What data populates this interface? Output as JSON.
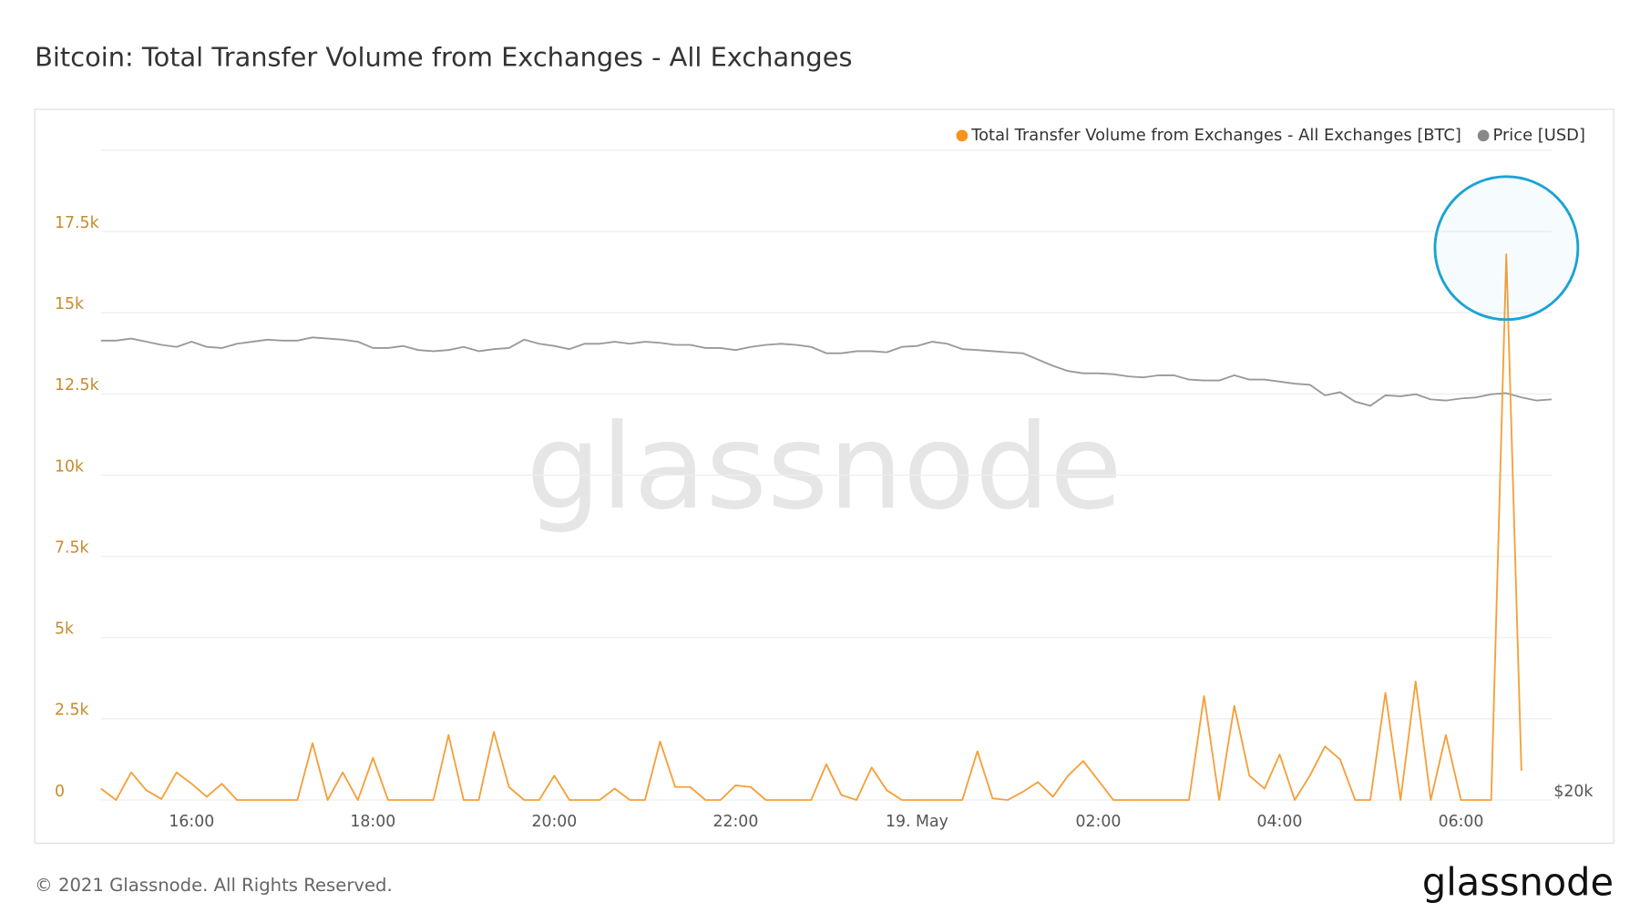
{
  "chart_data": {
    "type": "line",
    "title": "Bitcoin: Total Transfer Volume from Exchanges - All Exchanges",
    "watermark": "glassnode",
    "footer": "© 2021 Glassnode. All Rights Reserved.",
    "logo": "glassnode",
    "categories": [
      null,
      null,
      null,
      null,
      null,
      null,
      "16:00",
      null,
      null,
      null,
      null,
      null,
      null,
      null,
      null,
      null,
      null,
      null,
      "18:00",
      null,
      null,
      null,
      null,
      null,
      null,
      null,
      null,
      null,
      null,
      null,
      "20:00",
      null,
      null,
      null,
      null,
      null,
      null,
      null,
      null,
      null,
      null,
      null,
      "22:00",
      null,
      null,
      null,
      null,
      null,
      null,
      null,
      null,
      null,
      null,
      null,
      "19. May",
      null,
      null,
      null,
      null,
      null,
      null,
      null,
      null,
      null,
      null,
      null,
      "02:00",
      null,
      null,
      null,
      null,
      null,
      null,
      null,
      null,
      null,
      null,
      null,
      "04:00",
      null,
      null,
      null,
      null,
      null,
      null,
      null,
      null,
      null,
      null,
      null,
      "06:00",
      null,
      null,
      null,
      null,
      null,
      null
    ],
    "series": [
      {
        "name": "Total Transfer Volume from Exchanges - All Exchanges [BTC]",
        "color": "#f5a03a",
        "values": [
          350,
          0,
          850,
          300,
          30,
          850,
          500,
          100,
          500,
          0,
          0,
          0,
          0,
          0,
          1750,
          0,
          850,
          0,
          1300,
          0,
          0,
          0,
          0,
          2000,
          0,
          0,
          2100,
          400,
          0,
          0,
          750,
          0,
          0,
          0,
          350,
          0,
          0,
          1800,
          400,
          400,
          0,
          0,
          450,
          400,
          0,
          0,
          0,
          0,
          1100,
          150,
          0,
          1000,
          300,
          0,
          0,
          0,
          0,
          0,
          1500,
          50,
          0,
          250,
          550,
          100,
          750,
          1200,
          600,
          0,
          0,
          0,
          0,
          0,
          0,
          3200,
          0,
          2900,
          750,
          350,
          1400,
          0,
          750,
          1650,
          1250,
          0,
          0,
          3300,
          0,
          3650,
          0,
          2000,
          0,
          0,
          0,
          16800,
          900,
          null,
          null
        ]
      },
      {
        "name": "Price [USD]",
        "color": "#999999",
        "axis": "y2",
        "values": [
          44750,
          44750,
          44860,
          44690,
          44520,
          44410,
          44690,
          44410,
          44350,
          44580,
          44690,
          44800,
          44750,
          44750,
          44920,
          44860,
          44800,
          44690,
          44350,
          44350,
          44460,
          44240,
          44180,
          44240,
          44410,
          44180,
          44290,
          44350,
          44800,
          44580,
          44460,
          44290,
          44580,
          44580,
          44690,
          44580,
          44690,
          44630,
          44520,
          44520,
          44350,
          44350,
          44240,
          44410,
          44520,
          44580,
          44520,
          44410,
          44070,
          44070,
          44180,
          44180,
          44120,
          44410,
          44460,
          44690,
          44580,
          44290,
          44240,
          44180,
          44120,
          44070,
          43730,
          43390,
          43110,
          42990,
          42990,
          42940,
          42820,
          42770,
          42880,
          42880,
          42650,
          42600,
          42600,
          42880,
          42650,
          42650,
          42540,
          42430,
          42370,
          41800,
          41970,
          41460,
          41240,
          41800,
          41750,
          41860,
          41580,
          41520,
          41630,
          41690,
          41860,
          41920,
          41690,
          41520,
          41580
        ]
      }
    ],
    "ylim": [
      0,
      20000
    ],
    "yticks": [
      0,
      {
        "value": 2500,
        "label": "2.5k"
      },
      {
        "value": 5000,
        "label": "5k"
      },
      {
        "value": 7500,
        "label": "7.5k"
      },
      {
        "value": 10000,
        "label": "10k"
      },
      {
        "value": 12500,
        "label": "12.5k"
      },
      {
        "value": 15000,
        "label": "15k"
      },
      {
        "value": 17500,
        "label": "17.5k"
      }
    ],
    "y2lim": [
      20000,
      55000
    ],
    "y2ticks": [
      {
        "value": 20000,
        "label": "$20k"
      }
    ],
    "grid": true,
    "legend": "top-right"
  }
}
